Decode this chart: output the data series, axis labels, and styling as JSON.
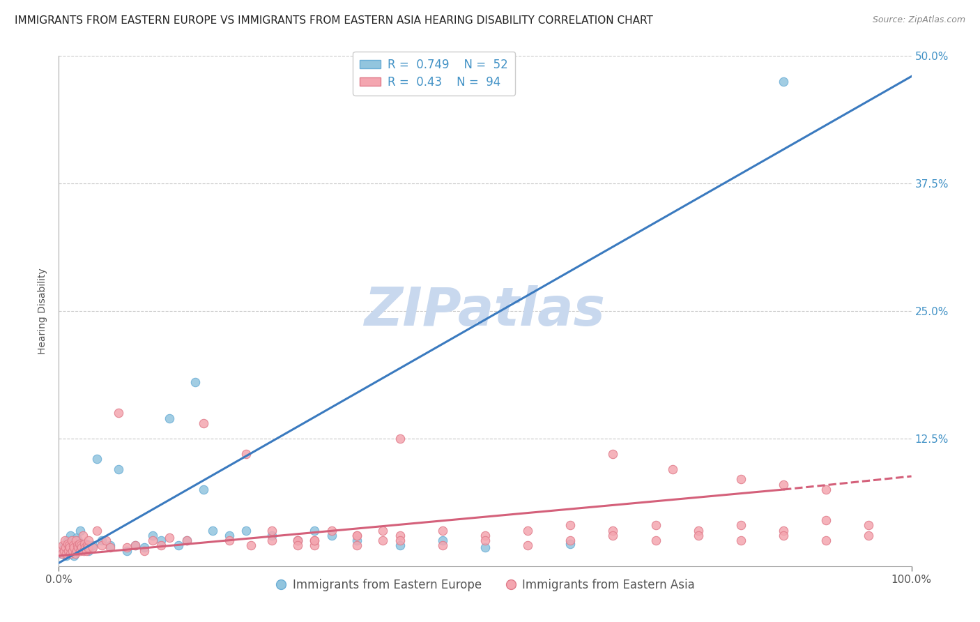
{
  "title": "IMMIGRANTS FROM EASTERN EUROPE VS IMMIGRANTS FROM EASTERN ASIA HEARING DISABILITY CORRELATION CHART",
  "source": "Source: ZipAtlas.com",
  "ylabel": "Hearing Disability",
  "xlim": [
    0,
    100
  ],
  "ylim": [
    0,
    50
  ],
  "yticks": [
    0,
    12.5,
    25,
    37.5,
    50
  ],
  "yticklabels_right": [
    "",
    "12.5%",
    "25.0%",
    "37.5%",
    "50.0%"
  ],
  "blue_R": 0.749,
  "blue_N": 52,
  "pink_R": 0.43,
  "pink_N": 94,
  "blue_color": "#92c5de",
  "pink_color": "#f4a6b0",
  "blue_edge_color": "#6baed6",
  "pink_edge_color": "#e07b8a",
  "blue_line_color": "#3a7abf",
  "pink_line_color": "#d4607a",
  "label_blue": "Immigrants from Eastern Europe",
  "label_pink": "Immigrants from Eastern Asia",
  "watermark": "ZIPatlas",
  "blue_line_x0": 0,
  "blue_line_y0": 0.3,
  "blue_line_x1": 100,
  "blue_line_y1": 48.0,
  "pink_line_solid_x0": 0,
  "pink_line_solid_y0": 1.0,
  "pink_line_solid_x1": 85,
  "pink_line_solid_y1": 7.5,
  "pink_line_dash_x0": 85,
  "pink_line_dash_y0": 7.5,
  "pink_line_dash_x1": 100,
  "pink_line_dash_y1": 8.8,
  "blue_scatter_x": [
    0.3,
    0.5,
    0.6,
    0.8,
    0.9,
    1.0,
    1.1,
    1.2,
    1.3,
    1.4,
    1.5,
    1.6,
    1.7,
    1.8,
    1.9,
    2.0,
    2.1,
    2.2,
    2.3,
    2.5,
    2.7,
    3.0,
    3.2,
    3.5,
    4.0,
    4.5,
    5.0,
    6.0,
    7.0,
    8.0,
    9.0,
    10.0,
    11.0,
    12.0,
    13.0,
    14.0,
    15.0,
    16.0,
    17.0,
    18.0,
    20.0,
    22.0,
    25.0,
    28.0,
    30.0,
    32.0,
    35.0,
    40.0,
    45.0,
    50.0,
    60.0,
    85.0
  ],
  "blue_scatter_y": [
    1.2,
    1.5,
    2.0,
    1.8,
    1.0,
    2.5,
    1.5,
    2.0,
    1.2,
    3.0,
    2.2,
    1.5,
    1.8,
    1.0,
    2.0,
    1.5,
    2.8,
    1.5,
    2.5,
    3.5,
    2.0,
    1.8,
    2.2,
    1.5,
    2.0,
    10.5,
    2.5,
    2.0,
    9.5,
    1.5,
    2.0,
    1.8,
    3.0,
    2.5,
    14.5,
    2.0,
    2.5,
    18.0,
    7.5,
    3.5,
    3.0,
    3.5,
    3.0,
    2.5,
    3.5,
    3.0,
    2.5,
    2.0,
    2.5,
    1.8,
    2.2,
    47.5
  ],
  "pink_scatter_x": [
    0.2,
    0.4,
    0.5,
    0.6,
    0.7,
    0.8,
    0.9,
    1.0,
    1.1,
    1.2,
    1.3,
    1.4,
    1.5,
    1.6,
    1.7,
    1.8,
    1.9,
    2.0,
    2.1,
    2.2,
    2.3,
    2.4,
    2.5,
    2.6,
    2.7,
    2.8,
    2.9,
    3.0,
    3.1,
    3.2,
    3.3,
    3.4,
    3.5,
    4.0,
    4.5,
    5.0,
    5.5,
    6.0,
    7.0,
    8.0,
    9.0,
    10.0,
    11.0,
    12.0,
    13.0,
    15.0,
    17.0,
    20.0,
    22.0,
    25.0,
    28.0,
    30.0,
    32.0,
    35.0,
    38.0,
    40.0,
    45.0,
    50.0,
    55.0,
    60.0,
    65.0,
    70.0,
    75.0,
    80.0,
    85.0,
    90.0,
    95.0,
    28.0,
    30.0,
    35.0,
    38.0,
    40.0,
    22.5,
    25.0,
    28.0,
    30.0,
    35.0,
    40.0,
    45.0,
    50.0,
    55.0,
    60.0,
    65.0,
    70.0,
    75.0,
    80.0,
    85.0,
    90.0,
    95.0,
    65.0,
    72.0,
    80.0,
    85.0,
    90.0
  ],
  "pink_scatter_y": [
    1.5,
    1.2,
    2.0,
    1.5,
    2.5,
    1.8,
    1.2,
    2.2,
    1.5,
    2.0,
    1.8,
    1.2,
    2.5,
    1.5,
    2.0,
    1.8,
    1.2,
    2.5,
    1.5,
    2.0,
    1.8,
    2.2,
    1.5,
    2.0,
    1.8,
    3.0,
    1.5,
    2.2,
    1.8,
    1.5,
    2.0,
    1.8,
    2.5,
    1.8,
    3.5,
    2.0,
    2.5,
    1.8,
    15.0,
    1.8,
    2.0,
    1.5,
    2.5,
    2.0,
    2.8,
    2.5,
    14.0,
    2.5,
    11.0,
    3.5,
    2.5,
    2.0,
    3.5,
    3.0,
    3.5,
    3.0,
    3.5,
    3.0,
    3.5,
    4.0,
    3.5,
    4.0,
    3.5,
    4.0,
    3.5,
    4.5,
    4.0,
    2.5,
    2.5,
    3.0,
    2.5,
    12.5,
    2.0,
    2.5,
    2.0,
    2.5,
    2.0,
    2.5,
    2.0,
    2.5,
    2.0,
    2.5,
    3.0,
    2.5,
    3.0,
    2.5,
    3.0,
    2.5,
    3.0,
    11.0,
    9.5,
    8.5,
    8.0,
    7.5
  ],
  "title_fontsize": 11,
  "axis_label_fontsize": 10,
  "tick_fontsize": 11,
  "legend_fontsize": 12,
  "watermark_fontsize": 55,
  "watermark_color": "#c8d8ee",
  "background_color": "#ffffff",
  "grid_color": "#c8c8c8",
  "axis_color": "#4292c6",
  "text_color": "#555555"
}
